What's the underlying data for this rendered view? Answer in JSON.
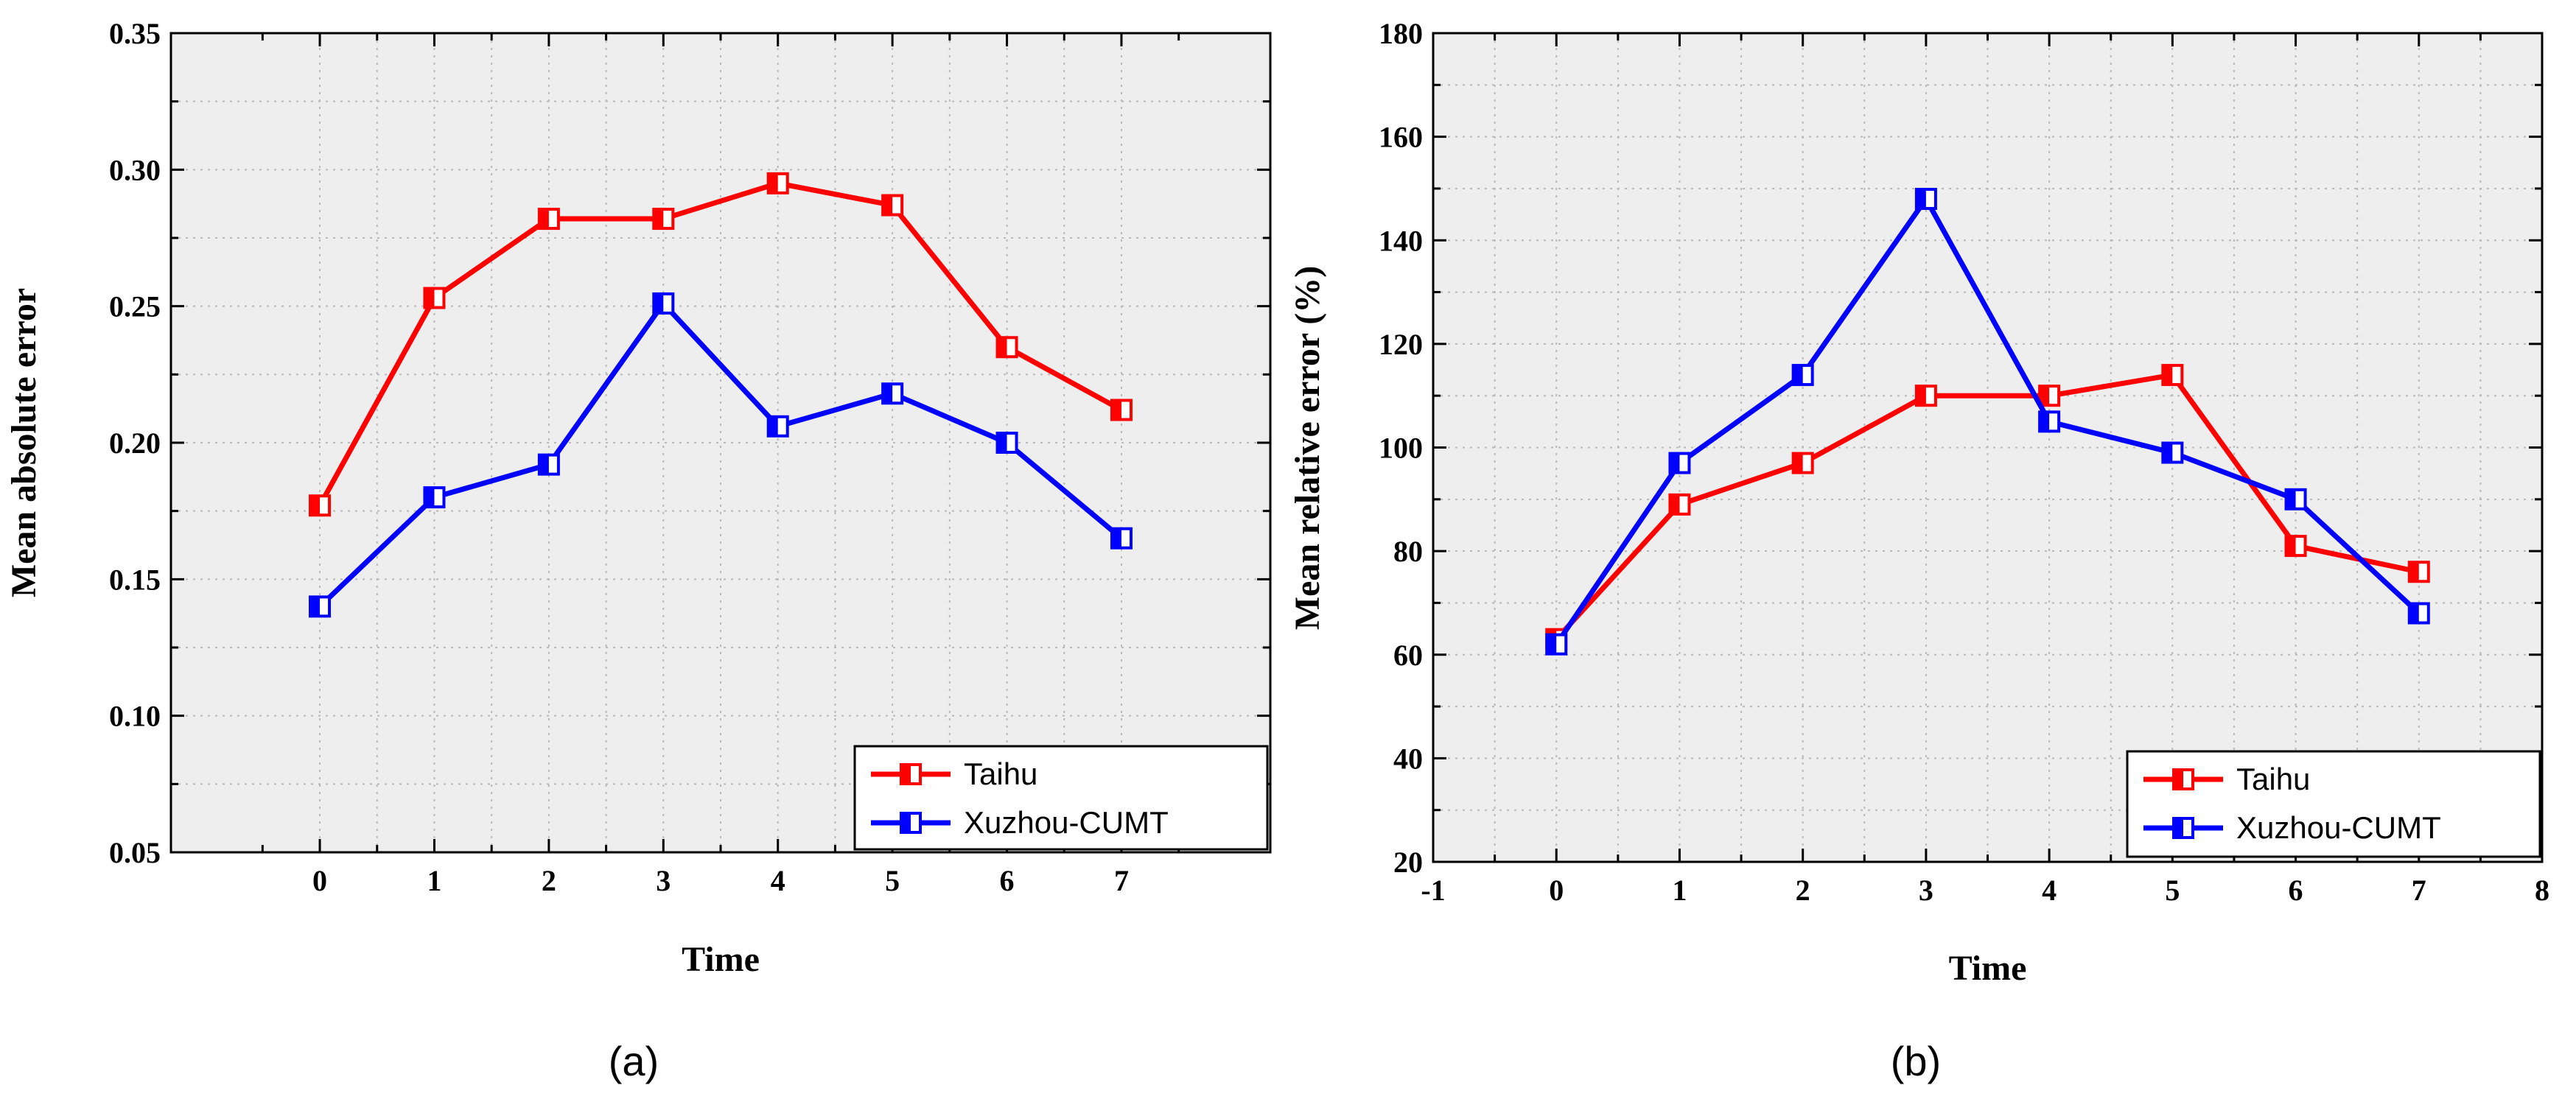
{
  "chart_data": [
    {
      "type": "line",
      "panel_label": "(a)",
      "xlabel": "Time",
      "ylabel": "Mean absolute error",
      "xlim": [
        -1.3,
        8.3
      ],
      "ylim": [
        0.05,
        0.35
      ],
      "xticks": [
        0,
        1,
        2,
        3,
        4,
        5,
        6,
        7
      ],
      "xtick_labels": [
        "0",
        "1",
        "2",
        "3",
        "4",
        "5",
        "6",
        "7"
      ],
      "yticks": [
        0.05,
        0.1,
        0.15,
        0.2,
        0.25,
        0.3,
        0.35
      ],
      "ytick_labels": [
        "0.05",
        "0.10",
        "0.15",
        "0.20",
        "0.25",
        "0.30",
        "0.35"
      ],
      "grid": true,
      "legend_position": "bottom-right",
      "x": [
        0,
        1,
        2,
        3,
        4,
        5,
        6,
        7
      ],
      "series": [
        {
          "name": "Taihu",
          "color": "#ff0000",
          "values": [
            0.177,
            0.253,
            0.282,
            0.282,
            0.295,
            0.287,
            0.235,
            0.212
          ]
        },
        {
          "name": "Xuzhou-CUMT",
          "color": "#0000ff",
          "values": [
            0.14,
            0.18,
            0.192,
            0.251,
            0.206,
            0.218,
            0.2,
            0.165
          ]
        }
      ]
    },
    {
      "type": "line",
      "panel_label": "(b)",
      "xlabel": "Time",
      "ylabel": "Mean relative error (%)",
      "xlim": [
        -1,
        8
      ],
      "ylim": [
        20,
        180
      ],
      "xticks": [
        -1,
        0,
        1,
        2,
        3,
        4,
        5,
        6,
        7,
        8
      ],
      "xtick_labels": [
        "-1",
        "0",
        "1",
        "2",
        "3",
        "4",
        "5",
        "6",
        "7",
        "8"
      ],
      "yticks": [
        20,
        40,
        60,
        80,
        100,
        120,
        140,
        160,
        180
      ],
      "ytick_labels": [
        "20",
        "40",
        "60",
        "80",
        "100",
        "120",
        "140",
        "160",
        "180"
      ],
      "grid": true,
      "legend_position": "bottom-right",
      "x": [
        0,
        1,
        2,
        3,
        4,
        5,
        6,
        7
      ],
      "series": [
        {
          "name": "Taihu",
          "color": "#ff0000",
          "values": [
            63,
            89,
            97,
            110,
            110,
            114,
            81,
            76
          ]
        },
        {
          "name": "Xuzhou-CUMT",
          "color": "#0000ff",
          "values": [
            62,
            97,
            114,
            148,
            105,
            99,
            90,
            68
          ]
        }
      ]
    }
  ]
}
